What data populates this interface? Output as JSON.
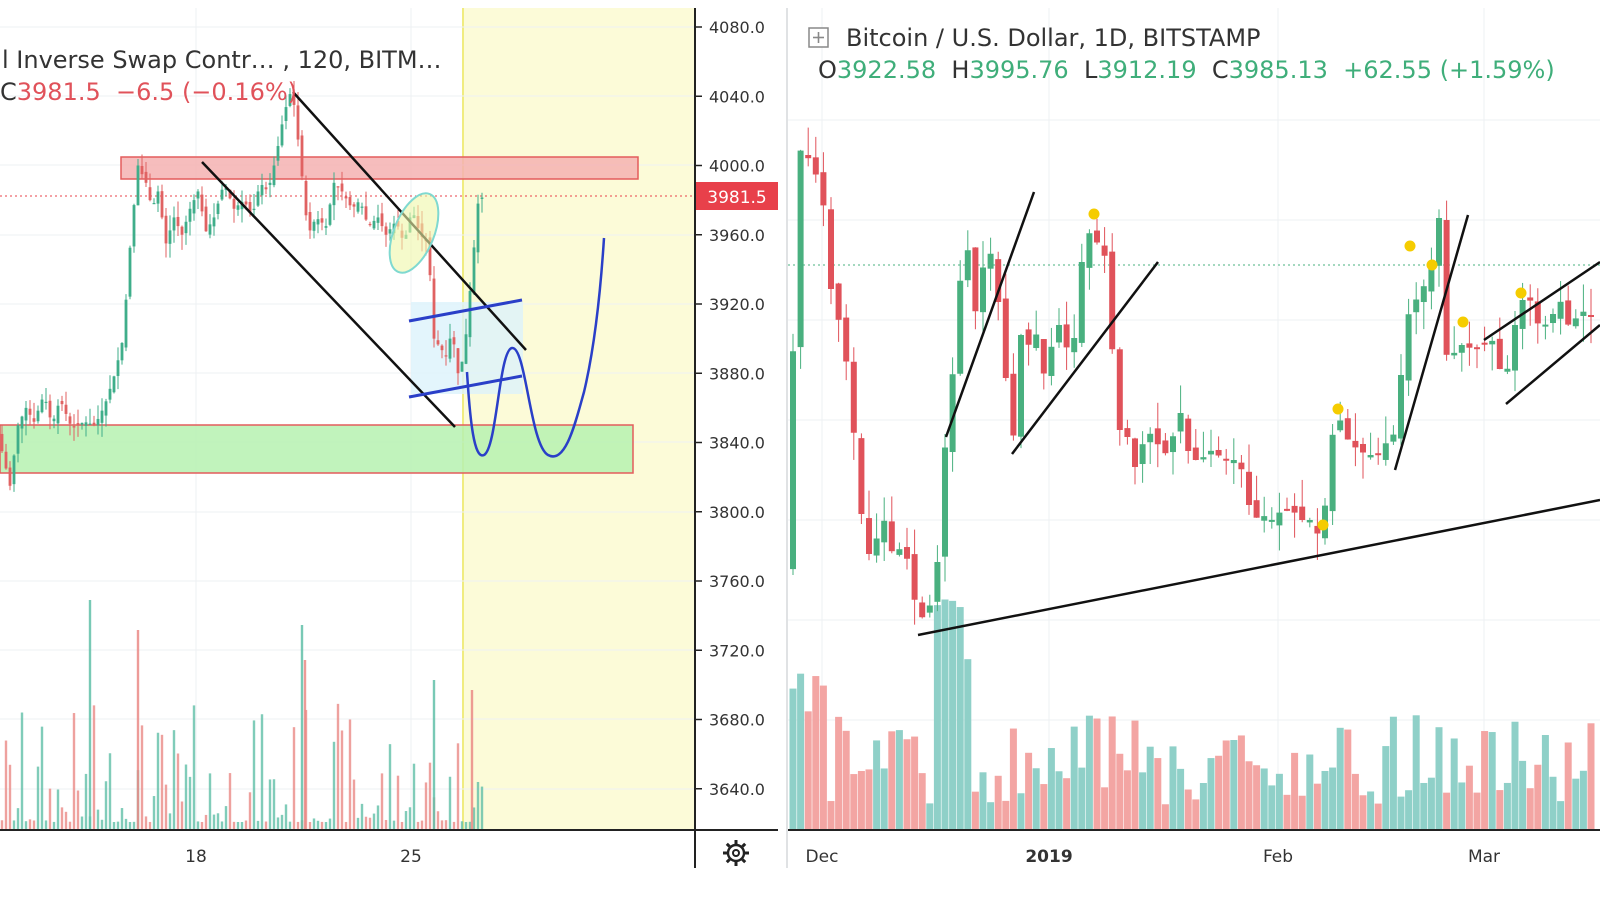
{
  "left_panel": {
    "title": "l Inverse Swap Contr… , 120, BITM…",
    "ohlc": {
      "close_prefix": "C",
      "close": "3981.5",
      "change": "−6.5",
      "change_pct": "(−0.16%)"
    },
    "price_axis_labels": [
      "4080.0",
      "4040.0",
      "4000.0",
      "3960.0",
      "3920.0",
      "3880.0",
      "3840.0",
      "3800.0",
      "3760.0",
      "3720.0",
      "3680.0",
      "3640.0"
    ],
    "date_axis_labels": [
      "18",
      "25"
    ],
    "last_price_tag": "3981.5",
    "settings_icon": "gear-icon",
    "colors": {
      "up": "#60bfa8",
      "down": "#ea8a86",
      "resistance_zone": "#f4b2b2",
      "support_zone": "#b6f1b0",
      "forecast_bg": "#fcfbd8",
      "drawing_blue": "#2a3fc8",
      "tag_red": "#e8404a"
    }
  },
  "right_panel": {
    "expand_icon": "plus-box-icon",
    "title": "Bitcoin / U.S. Dollar, 1D, BITSTAMP",
    "ohlc": {
      "open_label": "O",
      "open": "3922.58",
      "high_label": "H",
      "high": "3995.76",
      "low_label": "L",
      "low": "3912.19",
      "close_label": "C",
      "close": "3985.13",
      "change": "+62.55",
      "change_pct": "(+1.59%)"
    },
    "date_axis_labels": [
      "Dec",
      "2019",
      "Feb",
      "Mar"
    ],
    "colors": {
      "up": "#49b07f",
      "down": "#e0525a",
      "vol_up": "#8fd0c8",
      "vol_down": "#f3a5a3",
      "marker": "#f5cc00",
      "trendline": "#111111"
    }
  },
  "chart_data": [
    {
      "type": "candlestick",
      "title": "l Inverse Swap Contr… , 120, BITM…",
      "x_ticks": [
        "18",
        "25"
      ],
      "ylim": [
        3620,
        4095
      ],
      "y_ticks": [
        4080,
        4040,
        4000,
        3960,
        3920,
        3880,
        3840,
        3800,
        3760,
        3720,
        3680,
        3640
      ],
      "last_price": 3981.5,
      "price_points": [
        [
          0,
          3840
        ],
        [
          10,
          3815
        ],
        [
          18,
          3850
        ],
        [
          26,
          3860
        ],
        [
          34,
          3852
        ],
        [
          44,
          3868
        ],
        [
          52,
          3850
        ],
        [
          60,
          3865
        ],
        [
          72,
          3848
        ],
        [
          84,
          3852
        ],
        [
          95,
          3850
        ],
        [
          105,
          3862
        ],
        [
          115,
          3880
        ],
        [
          123,
          3900
        ],
        [
          131,
          3960
        ],
        [
          138,
          4000
        ],
        [
          146,
          3990
        ],
        [
          152,
          3975
        ],
        [
          158,
          3985
        ],
        [
          166,
          3955
        ],
        [
          174,
          3970
        ],
        [
          182,
          3960
        ],
        [
          190,
          3975
        ],
        [
          198,
          3985
        ],
        [
          206,
          3962
        ],
        [
          214,
          3970
        ],
        [
          224,
          3990
        ],
        [
          234,
          3975
        ],
        [
          244,
          3980
        ],
        [
          252,
          3970
        ],
        [
          260,
          3990
        ],
        [
          268,
          3985
        ],
        [
          276,
          4005
        ],
        [
          284,
          4030
        ],
        [
          292,
          4045
        ],
        [
          300,
          4005
        ],
        [
          308,
          3960
        ],
        [
          316,
          3970
        ],
        [
          326,
          3965
        ],
        [
          334,
          3990
        ],
        [
          342,
          3985
        ],
        [
          352,
          3975
        ],
        [
          360,
          3980
        ],
        [
          368,
          3965
        ],
        [
          378,
          3970
        ],
        [
          386,
          3960
        ],
        [
          396,
          3968
        ],
        [
          404,
          3955
        ],
        [
          412,
          3975
        ],
        [
          420,
          3960
        ],
        [
          428,
          3955
        ],
        [
          434,
          3900
        ],
        [
          440,
          3895
        ],
        [
          446,
          3890
        ],
        [
          452,
          3905
        ],
        [
          458,
          3880
        ],
        [
          464,
          3890
        ],
        [
          472,
          3940
        ],
        [
          478,
          3978
        ],
        [
          482,
          3981.5
        ]
      ],
      "zones": [
        {
          "name": "resistance",
          "y_from": 3993,
          "y_to": 4006
        },
        {
          "name": "support",
          "y_from": 3823,
          "y_to": 3851
        }
      ]
    },
    {
      "type": "candlestick",
      "title": "Bitcoin / U.S. Dollar, 1D, BITSTAMP",
      "x_ticks": [
        "Dec",
        "2019",
        "Feb",
        "Mar"
      ],
      "ohlc_last": {
        "open": 3922.58,
        "high": 3995.76,
        "low": 3912.19,
        "close": 3985.13,
        "change": 62.55,
        "change_pct": 1.59
      }
    }
  ]
}
